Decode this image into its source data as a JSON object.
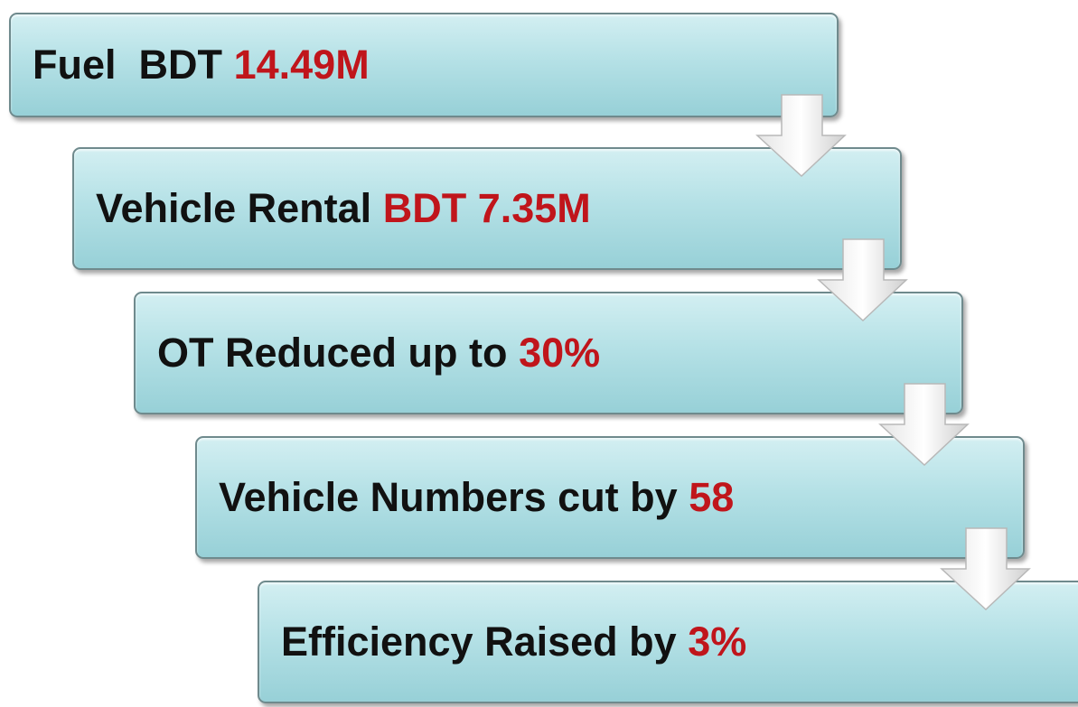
{
  "steps": [
    {
      "label": "Fuel  BDT",
      "highlight": "14.49M"
    },
    {
      "label": "Vehicle Rental",
      "highlight": "BDT 7.35M"
    },
    {
      "label": "OT Reduced up to",
      "highlight": "30%"
    },
    {
      "label": "Vehicle Numbers cut by",
      "highlight": "58"
    },
    {
      "label": "Efficiency Raised by",
      "highlight": "3%"
    }
  ]
}
